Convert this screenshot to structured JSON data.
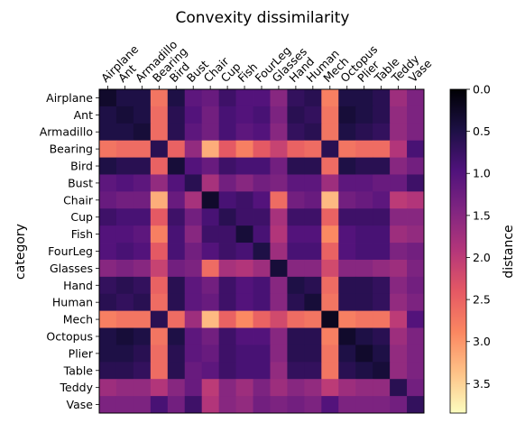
{
  "chart_data": {
    "type": "heatmap",
    "title": "Convexity dissimilarity",
    "xlabel": "",
    "ylabel": "category",
    "categories": [
      "Airplane",
      "Ant",
      "Armadillo",
      "Bearing",
      "Bird",
      "Bust",
      "Chair",
      "Cup",
      "Fish",
      "FourLeg",
      "Glasses",
      "Hand",
      "Human",
      "Mech",
      "Octopus",
      "Plier",
      "Table",
      "Teddy",
      "Vase"
    ],
    "x_tick_position": "top",
    "x_tick_rotation": 45,
    "colorbar": {
      "label": "distance",
      "ticks": [
        "0.0",
        "0.5",
        "1.0",
        "1.5",
        "2.0",
        "2.5",
        "3.0",
        "3.5"
      ],
      "tick_values": [
        0.0,
        0.5,
        1.0,
        1.5,
        2.0,
        2.5,
        3.0,
        3.5
      ],
      "range": [
        0.0,
        3.85
      ],
      "reversed": true,
      "colormap": "magma",
      "color_stops": [
        "#000004",
        "#1c1044",
        "#4f127b",
        "#812581",
        "#b5367a",
        "#e55964",
        "#fb8761",
        "#fec287",
        "#fcfdbf"
      ]
    },
    "block_values": [
      [
        0.3,
        0.5,
        0.5,
        2.7,
        0.5,
        1.1,
        1.2,
        0.8,
        1.0,
        1.0,
        1.5,
        0.7,
        0.6,
        2.8,
        0.5,
        0.5,
        0.6,
        1.7,
        1.4
      ],
      [
        0.5,
        0.4,
        0.5,
        2.6,
        0.6,
        1.0,
        1.3,
        0.9,
        1.0,
        0.9,
        1.4,
        0.6,
        0.7,
        2.7,
        0.4,
        0.5,
        0.6,
        1.6,
        1.4
      ],
      [
        0.5,
        0.5,
        0.4,
        2.6,
        0.6,
        1.1,
        1.3,
        0.9,
        1.1,
        1.0,
        1.5,
        0.7,
        0.6,
        2.7,
        0.5,
        0.6,
        0.7,
        1.6,
        1.4
      ],
      [
        2.7,
        2.6,
        2.6,
        0.6,
        2.5,
        1.6,
        3.2,
        2.4,
        2.8,
        2.4,
        2.1,
        2.5,
        2.6,
        0.6,
        2.7,
        2.6,
        2.6,
        1.9,
        0.9
      ],
      [
        0.5,
        0.6,
        0.6,
        2.5,
        0.4,
        1.0,
        1.2,
        0.8,
        0.9,
        0.9,
        1.3,
        0.6,
        0.6,
        2.6,
        0.5,
        0.6,
        0.6,
        1.5,
        1.3
      ],
      [
        1.1,
        1.0,
        1.1,
        1.6,
        1.0,
        0.6,
        1.8,
        1.3,
        1.5,
        1.3,
        1.4,
        1.1,
        1.1,
        1.7,
        1.1,
        1.1,
        1.2,
        1.2,
        0.8
      ],
      [
        1.2,
        1.3,
        1.3,
        3.2,
        1.2,
        1.8,
        0.3,
        0.9,
        0.8,
        1.0,
        2.6,
        1.3,
        1.2,
        3.3,
        1.3,
        1.2,
        1.1,
        2.0,
        1.9
      ],
      [
        0.8,
        0.9,
        0.9,
        2.4,
        0.8,
        1.3,
        0.9,
        0.6,
        0.8,
        0.8,
        1.8,
        0.8,
        0.8,
        2.5,
        0.8,
        0.8,
        0.8,
        1.5,
        1.5
      ],
      [
        1.0,
        1.0,
        1.1,
        2.8,
        0.9,
        1.5,
        0.8,
        0.8,
        0.4,
        0.9,
        1.9,
        1.0,
        1.0,
        2.9,
        1.0,
        0.9,
        0.9,
        1.7,
        1.6
      ],
      [
        1.0,
        0.9,
        1.0,
        2.4,
        0.9,
        1.3,
        1.0,
        0.8,
        0.9,
        0.5,
        1.7,
        0.9,
        0.9,
        2.5,
        1.0,
        0.9,
        0.9,
        1.4,
        1.3
      ],
      [
        1.5,
        1.4,
        1.5,
        2.1,
        1.3,
        1.4,
        2.6,
        1.8,
        1.9,
        1.7,
        0.4,
        1.5,
        1.5,
        2.2,
        1.5,
        1.5,
        1.6,
        1.7,
        1.4
      ],
      [
        0.7,
        0.6,
        0.7,
        2.5,
        0.6,
        1.1,
        1.3,
        0.8,
        1.0,
        0.9,
        1.5,
        0.5,
        0.6,
        2.6,
        0.6,
        0.6,
        0.7,
        1.5,
        1.3
      ],
      [
        0.6,
        0.7,
        0.6,
        2.6,
        0.6,
        1.1,
        1.2,
        0.8,
        1.0,
        0.9,
        1.5,
        0.6,
        0.4,
        2.7,
        0.6,
        0.6,
        0.7,
        1.6,
        1.4
      ],
      [
        2.8,
        2.7,
        2.7,
        0.6,
        2.6,
        1.7,
        3.3,
        2.5,
        2.9,
        2.5,
        2.2,
        2.6,
        2.7,
        0.2,
        2.8,
        2.7,
        2.7,
        2.0,
        1.0
      ],
      [
        0.5,
        0.4,
        0.5,
        2.7,
        0.5,
        1.1,
        1.3,
        0.8,
        1.0,
        1.0,
        1.5,
        0.6,
        0.6,
        2.8,
        0.3,
        0.5,
        0.6,
        1.7,
        1.4
      ],
      [
        0.5,
        0.5,
        0.6,
        2.6,
        0.6,
        1.1,
        1.2,
        0.8,
        0.9,
        0.9,
        1.5,
        0.6,
        0.6,
        2.7,
        0.5,
        0.3,
        0.5,
        1.6,
        1.4
      ],
      [
        0.6,
        0.6,
        0.7,
        2.6,
        0.6,
        1.2,
        1.1,
        0.8,
        0.9,
        0.9,
        1.6,
        0.7,
        0.7,
        2.7,
        0.6,
        0.5,
        0.4,
        1.6,
        1.4
      ],
      [
        1.7,
        1.6,
        1.6,
        1.9,
        1.5,
        1.2,
        2.0,
        1.5,
        1.7,
        1.4,
        1.7,
        1.5,
        1.6,
        2.0,
        1.7,
        1.6,
        1.6,
        0.6,
        1.3
      ],
      [
        1.4,
        1.4,
        1.4,
        0.9,
        1.3,
        0.8,
        1.9,
        1.5,
        1.6,
        1.3,
        1.4,
        1.3,
        1.4,
        1.0,
        1.4,
        1.4,
        1.4,
        1.3,
        0.7
      ]
    ]
  }
}
